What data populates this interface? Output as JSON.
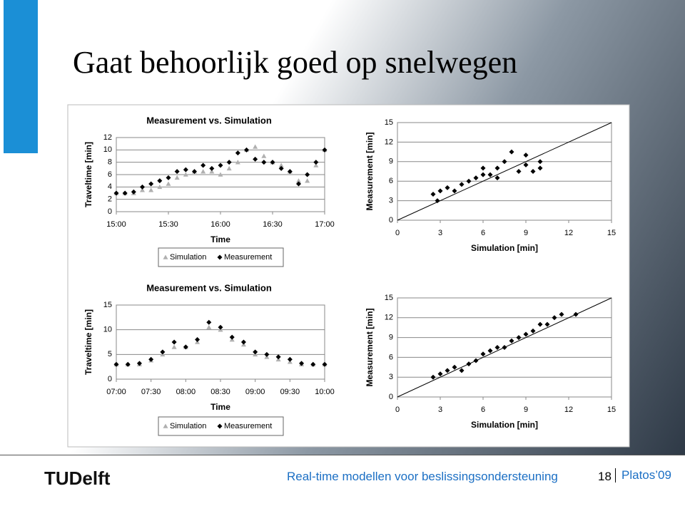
{
  "slide": {
    "title": "Gaat behoorlijk goed op snelwegen",
    "footer": {
      "logo": "TUDelft",
      "text": "Real-time modellen voor beslissingsondersteuning",
      "page": "18",
      "event": "Platos’09"
    }
  },
  "chart_data": [
    {
      "type": "scatter",
      "title": "Measurement vs. Simulation",
      "x_label": "Time",
      "y_label": "Traveltime [min]",
      "x": [
        "15:00",
        "15:05",
        "15:10",
        "15:15",
        "15:20",
        "15:25",
        "15:30",
        "15:35",
        "15:40",
        "15:45",
        "15:50",
        "15:55",
        "16:00",
        "16:05",
        "16:10",
        "16:15",
        "16:20",
        "16:25",
        "16:30",
        "16:35",
        "16:40",
        "16:45",
        "16:50",
        "16:55",
        "17:00"
      ],
      "series": [
        {
          "name": "Simulation",
          "color": "#b0b0b0",
          "marker": "triangle",
          "values": [
            3,
            3,
            3,
            3.5,
            3.5,
            4,
            4.5,
            5.5,
            6,
            6.5,
            6.5,
            6.5,
            6,
            7,
            8,
            10,
            10.5,
            9,
            8,
            7.5,
            6.5,
            5,
            5,
            7.5,
            10
          ]
        },
        {
          "name": "Measurement",
          "color": "#000000",
          "marker": "diamond",
          "values": [
            3,
            3,
            3.2,
            4,
            4.5,
            5,
            5.5,
            6.5,
            6.8,
            6.5,
            7.5,
            7,
            7.5,
            8,
            9.5,
            10,
            8.5,
            8,
            8,
            7,
            6.5,
            4.5,
            6,
            8,
            10
          ]
        }
      ],
      "xlim": [
        "15:00",
        "17:00"
      ],
      "xticks": [
        "15:00",
        "15:30",
        "16:00",
        "16:30",
        "17:00"
      ],
      "ylim": [
        0,
        12
      ],
      "yticks": [
        0,
        2,
        4,
        6,
        8,
        10,
        12
      ],
      "grid": true,
      "legend": "bottom"
    },
    {
      "type": "scatter",
      "x_label": "Simulation [min]",
      "y_label": "Measurement [min]",
      "color": "#000000",
      "marker": "diamond",
      "diagonal": true,
      "x": [
        2.5,
        2.8,
        3,
        3.5,
        4,
        4.5,
        5,
        5.5,
        6,
        6,
        6.5,
        7,
        7,
        7.5,
        8,
        8.5,
        9,
        9,
        9.5,
        10,
        10
      ],
      "values": [
        4,
        3,
        4.5,
        5,
        4.5,
        5.5,
        6,
        6.5,
        7,
        8,
        7,
        6.5,
        8,
        9,
        10.5,
        7.5,
        10,
        8.5,
        7.5,
        8,
        9
      ],
      "xlim": [
        0,
        15
      ],
      "xticks": [
        0,
        3,
        6,
        9,
        12,
        15
      ],
      "ylim": [
        0,
        15
      ],
      "yticks": [
        0,
        3,
        6,
        9,
        12,
        15
      ],
      "grid": true
    },
    {
      "type": "scatter",
      "title": "Measurement vs. Simulation",
      "x_label": "Time",
      "y_label": "Traveltime [min]",
      "x": [
        "07:00",
        "07:10",
        "07:20",
        "07:30",
        "07:40",
        "07:50",
        "08:00",
        "08:10",
        "08:20",
        "08:30",
        "08:40",
        "08:50",
        "09:00",
        "09:10",
        "09:20",
        "09:30",
        "09:40",
        "09:50",
        "10:00"
      ],
      "series": [
        {
          "name": "Simulation",
          "color": "#b0b0b0",
          "marker": "triangle",
          "values": [
            3,
            3,
            3,
            3.8,
            5,
            6.5,
            6.5,
            7.5,
            10.5,
            10,
            8,
            7,
            5,
            4.5,
            4,
            3.5,
            3,
            3,
            3
          ]
        },
        {
          "name": "Measurement",
          "color": "#000000",
          "marker": "diamond",
          "values": [
            3,
            3,
            3.2,
            4,
            5.5,
            7.5,
            6.5,
            8,
            11.5,
            10.5,
            8.5,
            7.5,
            5.5,
            5,
            4.5,
            4,
            3.2,
            3,
            3
          ]
        }
      ],
      "xlim": [
        "07:00",
        "10:00"
      ],
      "xticks": [
        "07:00",
        "07:30",
        "08:00",
        "08:30",
        "09:00",
        "09:30",
        "10:00"
      ],
      "ylim": [
        0,
        15
      ],
      "yticks": [
        0,
        5,
        10,
        15
      ],
      "grid": true,
      "legend": "bottom"
    },
    {
      "type": "scatter",
      "x_label": "Simulation [min]",
      "y_label": "Measurement [min]",
      "color": "#000000",
      "marker": "diamond",
      "diagonal": true,
      "x": [
        2.5,
        3,
        3.5,
        4,
        4.5,
        5,
        5.5,
        6,
        6.5,
        7,
        7.5,
        8,
        8.5,
        9,
        9.5,
        10,
        10.5,
        11,
        11.5,
        12.5
      ],
      "values": [
        3,
        3.5,
        4,
        4.5,
        4,
        5,
        5.5,
        6.5,
        7,
        7.5,
        7.5,
        8.5,
        9,
        9.5,
        10,
        11,
        11,
        12,
        12.5,
        12.5
      ],
      "xlim": [
        0,
        15
      ],
      "xticks": [
        0,
        3,
        6,
        9,
        12,
        15
      ],
      "ylim": [
        0,
        15
      ],
      "yticks": [
        0,
        3,
        6,
        9,
        12,
        15
      ],
      "grid": true
    }
  ]
}
